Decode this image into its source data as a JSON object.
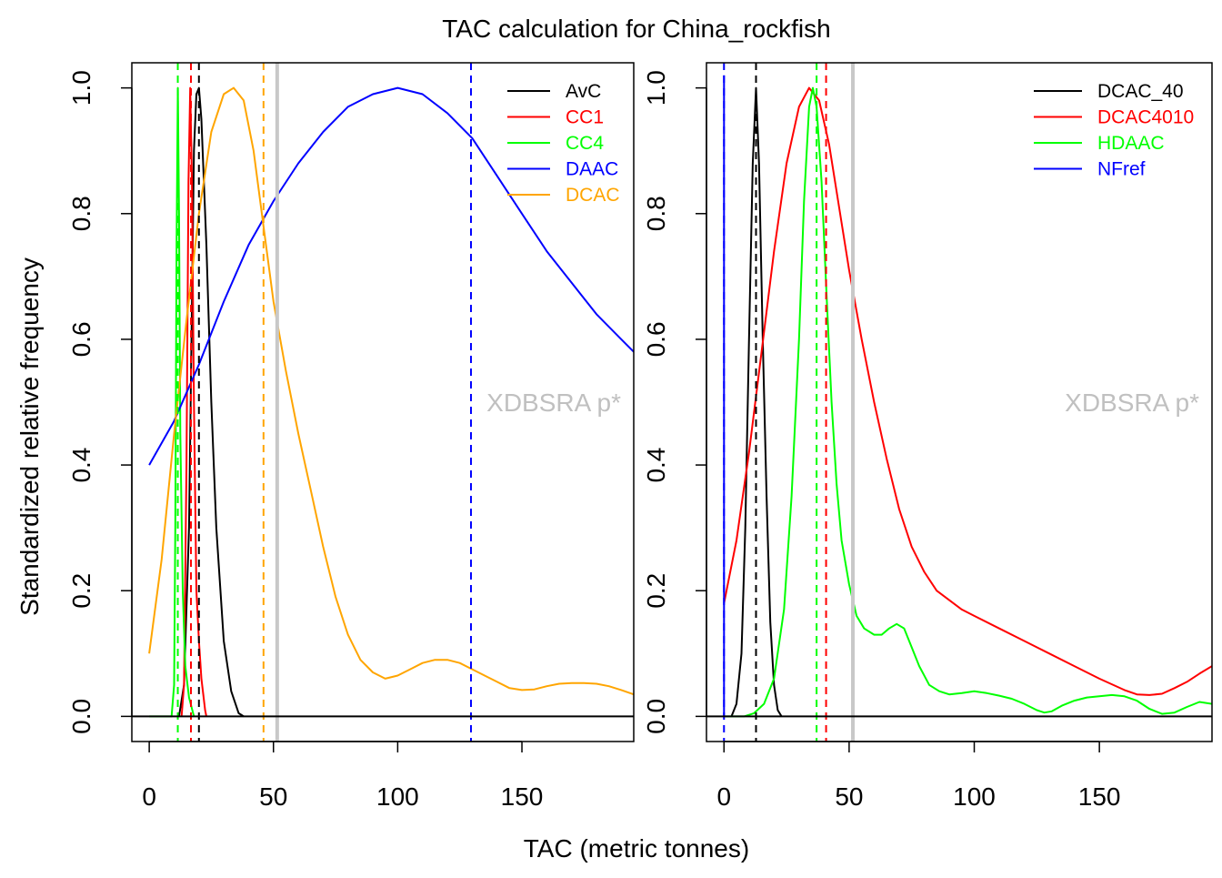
{
  "figure": {
    "title": "TAC calculation for China_rockfish",
    "xlabel": "TAC (metric tonnes)",
    "ylabel": "Standardized relative frequency",
    "watermark": "XDBSRA p*"
  },
  "chart_data": [
    {
      "type": "line",
      "panel": "left",
      "xlim": [
        -7,
        195
      ],
      "ylim": [
        -0.04,
        1.04
      ],
      "x_ticks": [
        "0",
        "50",
        "100",
        "150"
      ],
      "y_ticks": [
        "0.0",
        "0.2",
        "0.4",
        "0.6",
        "0.8",
        "1.0"
      ],
      "legend_position": "top-right",
      "hline_y": 0,
      "reference_line": {
        "x": 51.5,
        "color": "#c8c8c8"
      },
      "series": [
        {
          "name": "AvC",
          "color": "#000000",
          "median": 20,
          "points": [
            [
              12,
              0
            ],
            [
              14,
              0.05
            ],
            [
              16,
              0.3
            ],
            [
              17,
              0.6
            ],
            [
              18,
              0.9
            ],
            [
              19,
              0.99
            ],
            [
              20,
              1.0
            ],
            [
              21,
              0.95
            ],
            [
              23,
              0.75
            ],
            [
              25,
              0.5
            ],
            [
              27,
              0.3
            ],
            [
              30,
              0.12
            ],
            [
              33,
              0.04
            ],
            [
              36,
              0.005
            ],
            [
              38,
              0
            ]
          ]
        },
        {
          "name": "CC1",
          "color": "#ff0000",
          "median": 16.8,
          "points": [
            [
              13,
              0
            ],
            [
              14,
              0.05
            ],
            [
              15,
              0.4
            ],
            [
              15.8,
              0.85
            ],
            [
              16.5,
              1.0
            ],
            [
              17.2,
              0.85
            ],
            [
              18,
              0.5
            ],
            [
              19,
              0.2
            ],
            [
              20,
              0.12
            ],
            [
              21,
              0.06
            ],
            [
              22.5,
              0.01
            ],
            [
              23,
              0
            ]
          ]
        },
        {
          "name": "CC4",
          "color": "#00ff00",
          "median": 11.5,
          "points": [
            [
              0,
              0
            ],
            [
              9,
              0
            ],
            [
              10,
              0.05
            ],
            [
              10.5,
              0.3
            ],
            [
              11,
              0.75
            ],
            [
              11.5,
              1.0
            ],
            [
              12,
              0.8
            ],
            [
              12.5,
              0.45
            ],
            [
              13.5,
              0.2
            ],
            [
              14.5,
              0.08
            ],
            [
              16,
              0.03
            ],
            [
              18,
              0
            ]
          ]
        },
        {
          "name": "DAAC",
          "color": "#0000ff",
          "median": 129.5,
          "points": [
            [
              0,
              0.4
            ],
            [
              10,
              0.47
            ],
            [
              20,
              0.56
            ],
            [
              30,
              0.66
            ],
            [
              40,
              0.75
            ],
            [
              50,
              0.82
            ],
            [
              60,
              0.88
            ],
            [
              70,
              0.93
            ],
            [
              80,
              0.97
            ],
            [
              90,
              0.99
            ],
            [
              100,
              1.0
            ],
            [
              110,
              0.99
            ],
            [
              120,
              0.96
            ],
            [
              130,
              0.92
            ],
            [
              140,
              0.86
            ],
            [
              150,
              0.8
            ],
            [
              160,
              0.74
            ],
            [
              170,
              0.69
            ],
            [
              180,
              0.64
            ],
            [
              190,
              0.6
            ],
            [
              195,
              0.58
            ]
          ]
        },
        {
          "name": "DCAC",
          "color": "#ffa500",
          "median": 46,
          "points": [
            [
              0,
              0.1
            ],
            [
              5,
              0.25
            ],
            [
              10,
              0.45
            ],
            [
              15,
              0.63
            ],
            [
              20,
              0.8
            ],
            [
              25,
              0.93
            ],
            [
              30,
              0.99
            ],
            [
              34,
              1.0
            ],
            [
              38,
              0.98
            ],
            [
              42,
              0.9
            ],
            [
              46,
              0.78
            ],
            [
              50,
              0.66
            ],
            [
              55,
              0.55
            ],
            [
              60,
              0.45
            ],
            [
              65,
              0.36
            ],
            [
              70,
              0.27
            ],
            [
              75,
              0.19
            ],
            [
              80,
              0.13
            ],
            [
              85,
              0.09
            ],
            [
              90,
              0.07
            ],
            [
              95,
              0.06
            ],
            [
              100,
              0.065
            ],
            [
              105,
              0.075
            ],
            [
              110,
              0.085
            ],
            [
              115,
              0.09
            ],
            [
              120,
              0.09
            ],
            [
              125,
              0.085
            ],
            [
              130,
              0.075
            ],
            [
              135,
              0.065
            ],
            [
              140,
              0.055
            ],
            [
              145,
              0.045
            ],
            [
              150,
              0.042
            ],
            [
              155,
              0.043
            ],
            [
              160,
              0.048
            ],
            [
              165,
              0.052
            ],
            [
              170,
              0.053
            ],
            [
              175,
              0.053
            ],
            [
              180,
              0.052
            ],
            [
              185,
              0.048
            ],
            [
              190,
              0.042
            ],
            [
              195,
              0.035
            ]
          ]
        }
      ]
    },
    {
      "type": "line",
      "panel": "right",
      "xlim": [
        -7,
        195
      ],
      "ylim": [
        -0.04,
        1.04
      ],
      "x_ticks": [
        "0",
        "50",
        "100",
        "150"
      ],
      "y_ticks": [
        "0.0",
        "0.2",
        "0.4",
        "0.6",
        "0.8",
        "1.0"
      ],
      "legend_position": "top-right",
      "hline_y": 0,
      "reference_line": {
        "x": 51.5,
        "color": "#c8c8c8"
      },
      "series": [
        {
          "name": "DCAC_40",
          "color": "#000000",
          "median": 12.8,
          "points": [
            [
              3,
              0
            ],
            [
              5,
              0.02
            ],
            [
              7,
              0.1
            ],
            [
              8.5,
              0.3
            ],
            [
              10,
              0.6
            ],
            [
              11.5,
              0.88
            ],
            [
              12.8,
              1.0
            ],
            [
              14,
              0.88
            ],
            [
              15.5,
              0.6
            ],
            [
              17,
              0.35
            ],
            [
              18.5,
              0.15
            ],
            [
              20,
              0.05
            ],
            [
              21.5,
              0.01
            ],
            [
              23,
              0
            ]
          ]
        },
        {
          "name": "DCAC4010",
          "color": "#ff0000",
          "median": 40.8,
          "points": [
            [
              0,
              0.18
            ],
            [
              5,
              0.28
            ],
            [
              10,
              0.42
            ],
            [
              15,
              0.58
            ],
            [
              20,
              0.74
            ],
            [
              25,
              0.88
            ],
            [
              30,
              0.97
            ],
            [
              34,
              1.0
            ],
            [
              38,
              0.98
            ],
            [
              42,
              0.91
            ],
            [
              46,
              0.81
            ],
            [
              50,
              0.71
            ],
            [
              55,
              0.6
            ],
            [
              60,
              0.5
            ],
            [
              65,
              0.41
            ],
            [
              70,
              0.33
            ],
            [
              75,
              0.27
            ],
            [
              80,
              0.23
            ],
            [
              85,
              0.2
            ],
            [
              90,
              0.185
            ],
            [
              95,
              0.17
            ],
            [
              100,
              0.16
            ],
            [
              110,
              0.14
            ],
            [
              120,
              0.12
            ],
            [
              130,
              0.1
            ],
            [
              140,
              0.08
            ],
            [
              150,
              0.06
            ],
            [
              160,
              0.042
            ],
            [
              165,
              0.035
            ],
            [
              170,
              0.034
            ],
            [
              175,
              0.036
            ],
            [
              180,
              0.045
            ],
            [
              185,
              0.055
            ],
            [
              190,
              0.068
            ],
            [
              195,
              0.08
            ]
          ]
        },
        {
          "name": "HDAAC",
          "color": "#00ff00",
          "median": 37,
          "points": [
            [
              0,
              0
            ],
            [
              8,
              0
            ],
            [
              12,
              0.005
            ],
            [
              16,
              0.02
            ],
            [
              20,
              0.06
            ],
            [
              24,
              0.17
            ],
            [
              27,
              0.35
            ],
            [
              30,
              0.6
            ],
            [
              32,
              0.82
            ],
            [
              34,
              0.97
            ],
            [
              35.5,
              1.0
            ],
            [
              37,
              0.97
            ],
            [
              39,
              0.85
            ],
            [
              41,
              0.67
            ],
            [
              43,
              0.5
            ],
            [
              45,
              0.37
            ],
            [
              47,
              0.28
            ],
            [
              50,
              0.21
            ],
            [
              53,
              0.16
            ],
            [
              56,
              0.14
            ],
            [
              60,
              0.13
            ],
            [
              63,
              0.13
            ],
            [
              66,
              0.14
            ],
            [
              69,
              0.147
            ],
            [
              72,
              0.14
            ],
            [
              75,
              0.11
            ],
            [
              78,
              0.08
            ],
            [
              82,
              0.05
            ],
            [
              86,
              0.04
            ],
            [
              90,
              0.035
            ],
            [
              95,
              0.037
            ],
            [
              100,
              0.04
            ],
            [
              105,
              0.037
            ],
            [
              110,
              0.033
            ],
            [
              115,
              0.028
            ],
            [
              120,
              0.02
            ],
            [
              125,
              0.01
            ],
            [
              128,
              0.006
            ],
            [
              131,
              0.008
            ],
            [
              135,
              0.017
            ],
            [
              140,
              0.025
            ],
            [
              145,
              0.03
            ],
            [
              150,
              0.032
            ],
            [
              155,
              0.034
            ],
            [
              160,
              0.032
            ],
            [
              165,
              0.025
            ],
            [
              170,
              0.012
            ],
            [
              175,
              0.004
            ],
            [
              180,
              0.006
            ],
            [
              185,
              0.015
            ],
            [
              190,
              0.023
            ],
            [
              195,
              0.02
            ]
          ]
        },
        {
          "name": "NFref",
          "color": "#0000ff",
          "median": 0,
          "points": [
            [
              0,
              0
            ],
            [
              0,
              1.02
            ]
          ]
        }
      ]
    }
  ]
}
